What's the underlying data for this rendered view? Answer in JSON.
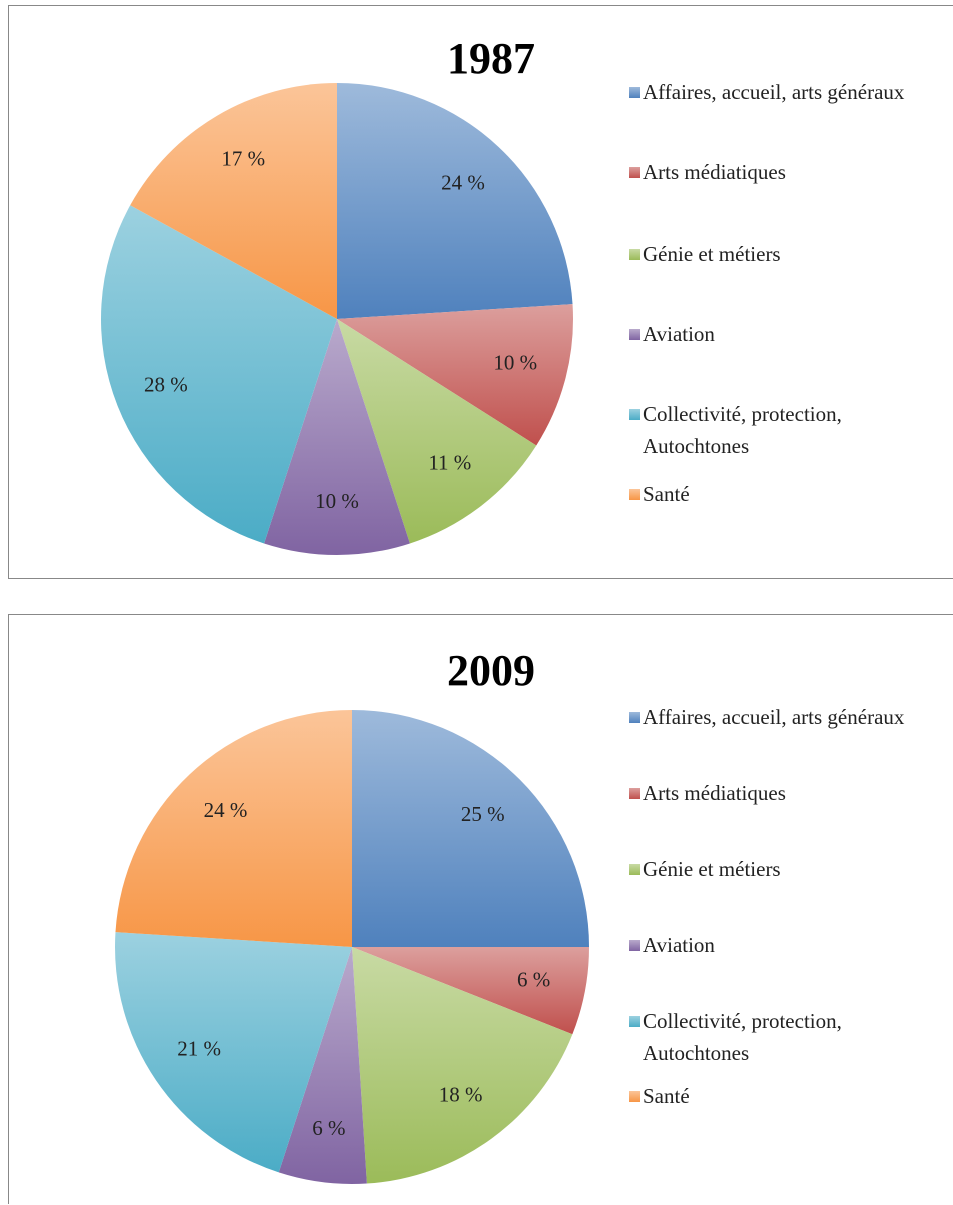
{
  "chart_data": [
    {
      "type": "pie",
      "title": "1987",
      "categories": [
        "Affaires, accueil, arts généraux",
        "Arts médiatiques",
        "Génie et métiers",
        "Aviation",
        "Collectivité, protection, Autochtones",
        "Santé"
      ],
      "values": [
        24,
        10,
        11,
        10,
        28,
        17
      ],
      "value_labels": [
        "24 %",
        "10 %",
        "11 %",
        "10 %",
        "28 %",
        "17 %"
      ],
      "colors": [
        "#4f81bd",
        "#c0504d",
        "#9bbb59",
        "#8064a2",
        "#4bacc6",
        "#f79646"
      ],
      "legend": "right"
    },
    {
      "type": "pie",
      "title": "2009",
      "categories": [
        "Affaires, accueil, arts généraux",
        "Arts médiatiques",
        "Génie et métiers",
        "Aviation",
        "Collectivité, protection, Autochtones",
        "Santé"
      ],
      "values": [
        25,
        6,
        18,
        6,
        21,
        24
      ],
      "value_labels": [
        "25 %",
        "6 %",
        "18 %",
        "6 %",
        "21 %",
        "24 %"
      ],
      "colors": [
        "#4f81bd",
        "#c0504d",
        "#9bbb59",
        "#8064a2",
        "#4bacc6",
        "#f79646"
      ],
      "legend": "right"
    }
  ]
}
